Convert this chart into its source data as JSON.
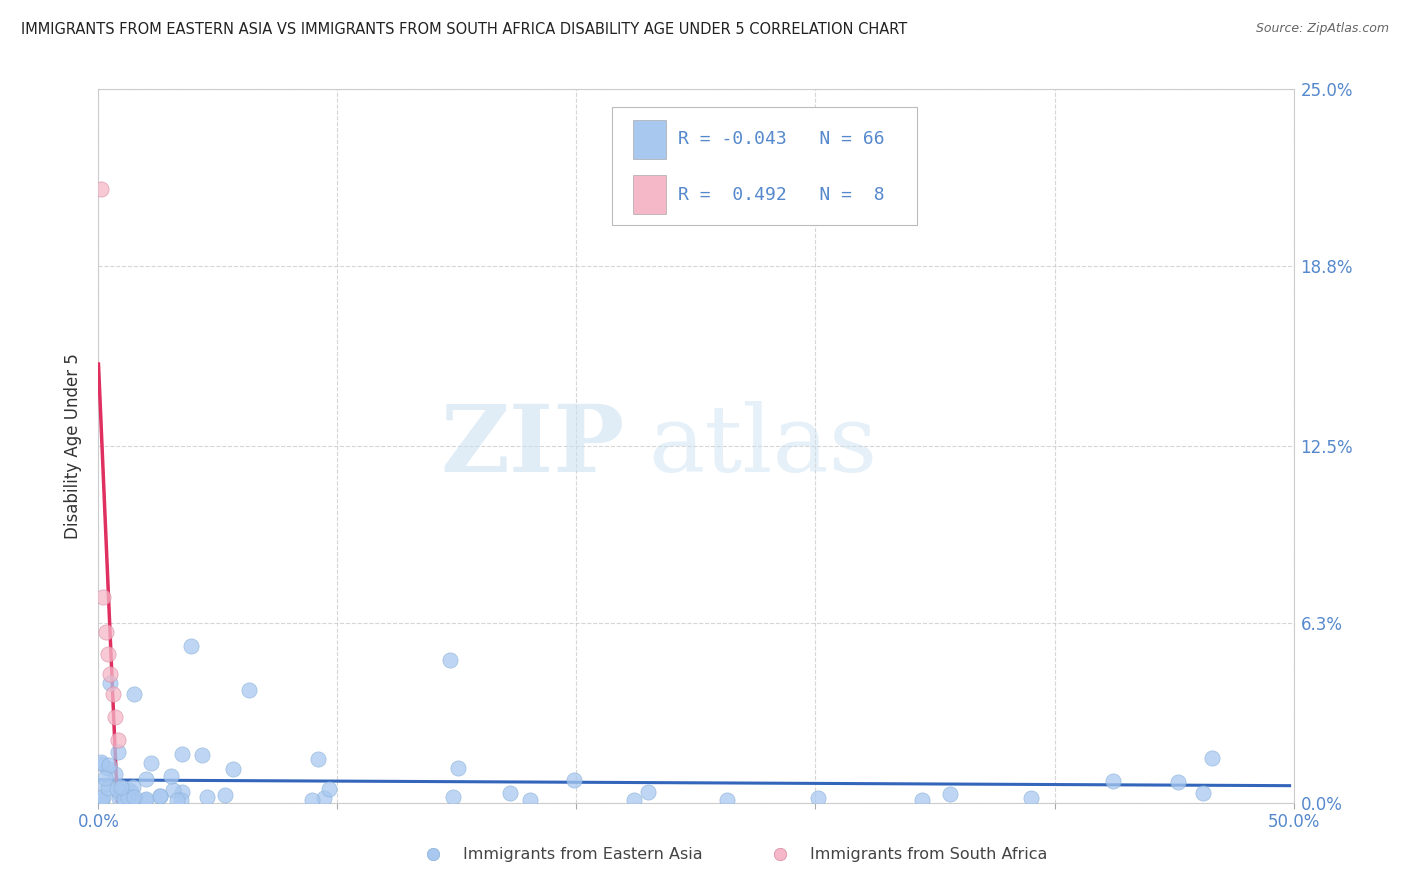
{
  "title": "IMMIGRANTS FROM EASTERN ASIA VS IMMIGRANTS FROM SOUTH AFRICA DISABILITY AGE UNDER 5 CORRELATION CHART",
  "source": "Source: ZipAtlas.com",
  "ylabel": "Disability Age Under 5",
  "xlim": [
    0.0,
    0.5
  ],
  "ylim": [
    0.0,
    0.25
  ],
  "xticks": [
    0.0,
    0.1,
    0.2,
    0.3,
    0.4,
    0.5
  ],
  "xticklabels": [
    "0.0%",
    "",
    "",
    "",
    "",
    "50.0%"
  ],
  "yticks": [
    0.0,
    0.063,
    0.125,
    0.188,
    0.25
  ],
  "yticklabels_right": [
    "0.0%",
    "6.3%",
    "12.5%",
    "18.8%",
    "25.0%"
  ],
  "bg_color": "#ffffff",
  "grid_color": "#cccccc",
  "watermark_zip": "ZIP",
  "watermark_atlas": "atlas",
  "eastern_asia_color": "#a8c8f0",
  "south_africa_color": "#f4b8c8",
  "eastern_asia_trend_color": "#3366bb",
  "south_africa_trend_color": "#e03060",
  "r_eastern": -0.043,
  "n_eastern": 66,
  "r_south": 0.492,
  "n_south": 8,
  "legend_label_1": "Immigrants from Eastern Asia",
  "legend_label_2": "Immigrants from South Africa",
  "tick_color": "#5588cc",
  "ylabel_color": "#333333"
}
